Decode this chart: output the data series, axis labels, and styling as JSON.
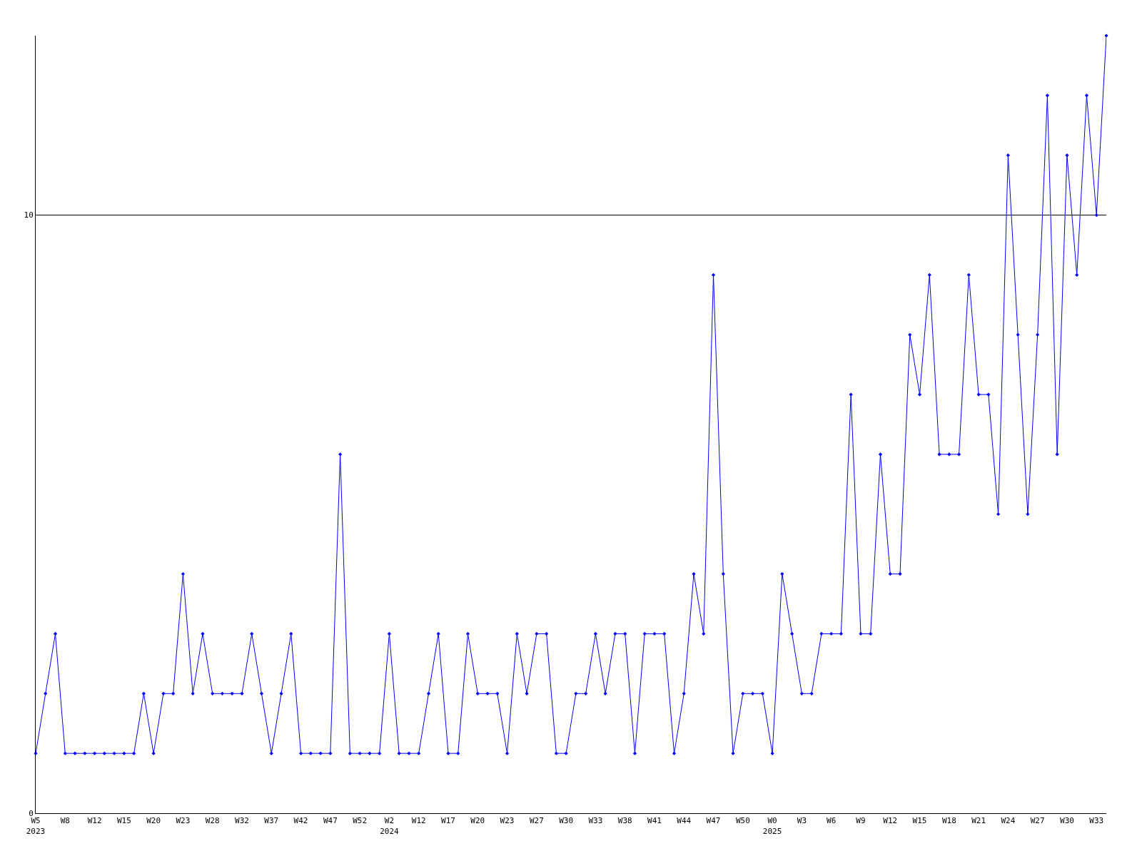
{
  "chart_data": {
    "type": "line",
    "categories": [
      "W5\n2023",
      null,
      null,
      "W8",
      null,
      null,
      "W12",
      null,
      null,
      "W15",
      null,
      null,
      "W20",
      null,
      null,
      "W23",
      null,
      null,
      "W28",
      null,
      null,
      "W32",
      null,
      null,
      "W37",
      null,
      null,
      "W42",
      null,
      null,
      "W47",
      null,
      null,
      "W52",
      null,
      null,
      "W2\n2024",
      null,
      null,
      "W12",
      null,
      null,
      "W17",
      null,
      null,
      "W20",
      null,
      null,
      "W23",
      null,
      null,
      "W27",
      null,
      null,
      "W30",
      null,
      null,
      "W33",
      null,
      null,
      "W38",
      null,
      null,
      "W41",
      null,
      null,
      "W44",
      null,
      null,
      "W47",
      null,
      null,
      "W50",
      null,
      null,
      "W0\n2025",
      null,
      null,
      "W3",
      null,
      null,
      "W6",
      null,
      null,
      "W9",
      null,
      null,
      "W12",
      null,
      null,
      "W15",
      null,
      null,
      "W18",
      null,
      null,
      "W21",
      null,
      null,
      "W24",
      null,
      null,
      "W27",
      null,
      null,
      "W30",
      null,
      null,
      "W33",
      null
    ],
    "series": [
      {
        "color": "#0000ff",
        "values": [
          1,
          2,
          3,
          1,
          1,
          1,
          1,
          1,
          1,
          1,
          1,
          2,
          1,
          2,
          2,
          4,
          2,
          3,
          2,
          2,
          2,
          2,
          3,
          2,
          1,
          2,
          3,
          1,
          1,
          1,
          1,
          6,
          1,
          1,
          1,
          1,
          3,
          1,
          1,
          1,
          2,
          3,
          1,
          1,
          3,
          2,
          2,
          2,
          1,
          3,
          2,
          3,
          3,
          1,
          1,
          2,
          2,
          3,
          2,
          3,
          3,
          1,
          3,
          3,
          3,
          1,
          2,
          4,
          3,
          9,
          4,
          1,
          2,
          2,
          2,
          1,
          4,
          3,
          2,
          2,
          3,
          3,
          3,
          7,
          3,
          3,
          6,
          4,
          4,
          8,
          7,
          9,
          6,
          6,
          6,
          9,
          7,
          7,
          5,
          11,
          8,
          5,
          8,
          12,
          6,
          11,
          9,
          12,
          10,
          13
        ]
      }
    ],
    "ylim": [
      0,
      13
    ],
    "yticks": [
      0,
      10
    ],
    "grid": "y",
    "marker": "diamond",
    "line_style": "solid"
  }
}
